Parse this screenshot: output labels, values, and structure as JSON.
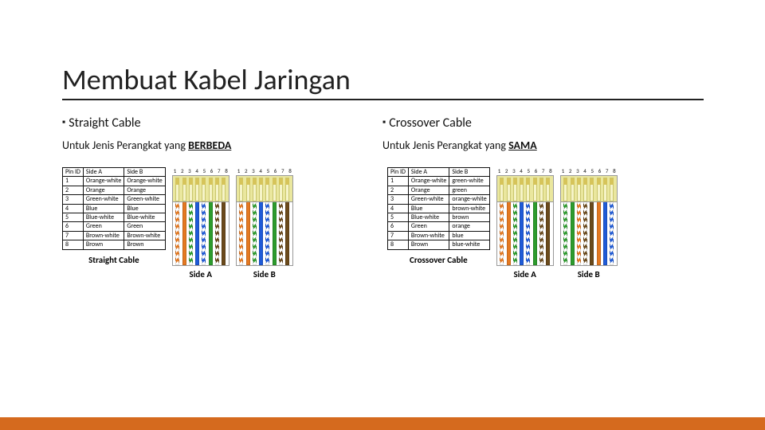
{
  "accent_color": "#d56a1e",
  "colors": {
    "orange": "#e57921",
    "green": "#2d9c2d",
    "blue": "#1f5bd8",
    "brown": "#6b4a1c",
    "white": "#ffffff",
    "rj45_body": "#eae79e",
    "rj45_pin": "#d6c45a",
    "border": "#111111"
  },
  "title": "Membuat Kabel Jaringan",
  "pin_numbers": [
    "1",
    "2",
    "3",
    "4",
    "5",
    "6",
    "7",
    "8"
  ],
  "table_headers": [
    "Pin ID",
    "Side A",
    "Side B"
  ],
  "left": {
    "heading": "Straight Cable",
    "sub_prefix": "Untuk Jenis Perangkat yang ",
    "sub_em": "BERBEDA",
    "caption": "Straight Cable",
    "sides": {
      "A": {
        "label": "Side A",
        "wires": [
          "orange-white",
          "orange",
          "green-white",
          "blue",
          "blue-white",
          "green",
          "brown-white",
          "brown"
        ]
      },
      "B": {
        "label": "Side B",
        "wires": [
          "orange-white",
          "orange",
          "green-white",
          "blue",
          "blue-white",
          "green",
          "brown-white",
          "brown"
        ]
      }
    },
    "rows": [
      [
        "1",
        "Orange-white",
        "Orange-white"
      ],
      [
        "2",
        "Orange",
        "Orange"
      ],
      [
        "3",
        "Green-white",
        "Green-white"
      ],
      [
        "4",
        "Blue",
        "Blue"
      ],
      [
        "5",
        "Blue-white",
        "Blue-white"
      ],
      [
        "6",
        "Green",
        "Green"
      ],
      [
        "7",
        "Brown-white",
        "Brown-white"
      ],
      [
        "8",
        "Brown",
        "Brown"
      ]
    ]
  },
  "right": {
    "heading": "Crossover Cable",
    "sub_prefix": "Untuk Jenis Perangkat yang ",
    "sub_em": "SAMA",
    "caption": "Crossover Cable",
    "sides": {
      "A": {
        "label": "Side A",
        "wires": [
          "orange-white",
          "orange",
          "green-white",
          "blue",
          "blue-white",
          "green",
          "brown-white",
          "brown"
        ]
      },
      "B": {
        "label": "Side B",
        "wires": [
          "green-white",
          "green",
          "orange-white",
          "brown-white",
          "brown",
          "orange",
          "blue",
          "blue-white"
        ]
      }
    },
    "rows": [
      [
        "1",
        "Orange-white",
        "green-white"
      ],
      [
        "2",
        "Orange",
        "green"
      ],
      [
        "3",
        "Green-white",
        "orange-white"
      ],
      [
        "4",
        "Blue",
        "brown-white"
      ],
      [
        "5",
        "Blue-white",
        "brown"
      ],
      [
        "6",
        "Green",
        "orange"
      ],
      [
        "7",
        "Brown-white",
        "blue"
      ],
      [
        "8",
        "Brown",
        "blue-white"
      ]
    ]
  }
}
